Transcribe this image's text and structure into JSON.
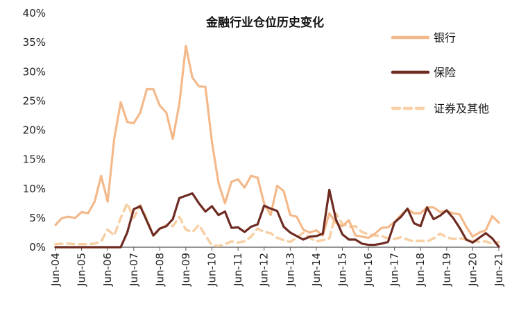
{
  "chart_data": {
    "type": "line",
    "title": "金融行业仓位历史变化",
    "xlabel": "",
    "ylabel": "",
    "ylim": [
      0,
      40
    ],
    "yticks": [
      "0%",
      "5%",
      "10%",
      "15%",
      "20%",
      "25%",
      "30%",
      "35%",
      "40%"
    ],
    "xticks": [
      "Jun-04",
      "Jun-05",
      "Jun-06",
      "Jun-07",
      "Jun-08",
      "Jun-09",
      "Jun-10",
      "Jun-11",
      "Jun-12",
      "Jun-13",
      "Jun-14",
      "Jun-15",
      "Jun-16",
      "Jun-17",
      "Jun-18",
      "Jun-19",
      "Jun-20",
      "Jun-21"
    ],
    "x_unit": "quarter index starting Jun-04 (4 per year)",
    "legend_position": "top-right",
    "grid": false,
    "series": [
      {
        "name": "银行",
        "color": "#f4b98b",
        "style": "solid",
        "values": [
          3.8,
          5.0,
          5.2,
          5.0,
          6.0,
          5.8,
          7.8,
          12.2,
          7.8,
          18.5,
          24.8,
          21.4,
          21.2,
          23.0,
          27.0,
          27.0,
          24.2,
          23.0,
          18.5,
          24.5,
          34.4,
          29.0,
          27.5,
          27.4,
          18.0,
          11.0,
          7.5,
          11.2,
          11.6,
          10.2,
          12.2,
          11.9,
          7.5,
          5.5,
          10.5,
          9.6,
          5.5,
          5.2,
          3.0,
          2.5,
          2.9,
          2.0,
          5.8,
          4.2,
          3.6,
          4.6,
          2.0,
          1.8,
          1.6,
          2.3,
          3.3,
          3.4,
          4.3,
          5.5,
          6.5,
          5.8,
          5.8,
          6.8,
          6.8,
          6.0,
          6.2,
          5.8,
          5.6,
          3.5,
          1.8,
          2.5,
          2.9,
          5.3,
          4.2
        ]
      },
      {
        "name": "保险",
        "color": "#6e2b22",
        "style": "solid",
        "values": [
          0,
          0,
          0,
          0,
          0,
          0,
          0,
          0,
          0,
          0,
          0,
          2.5,
          6.5,
          7.0,
          4.5,
          2.0,
          3.2,
          3.6,
          4.8,
          8.4,
          8.8,
          9.2,
          7.5,
          6.1,
          7.0,
          5.5,
          6.1,
          3.3,
          3.4,
          2.6,
          3.5,
          3.9,
          7.1,
          6.6,
          6.2,
          3.5,
          2.5,
          1.9,
          1.3,
          1.8,
          1.9,
          2.3,
          9.8,
          4.8,
          2.2,
          1.3,
          1.3,
          0.6,
          0.4,
          0.4,
          0.6,
          0.9,
          4.2,
          5.2,
          6.6,
          4.1,
          3.6,
          6.8,
          4.8,
          5.4,
          6.3,
          5.0,
          3.3,
          1.3,
          0.8,
          1.6,
          2.4,
          1.5,
          0.1
        ]
      },
      {
        "name": "证券及其他",
        "color": "#f7cfa3",
        "style": "dashed",
        "values": [
          0.5,
          0.6,
          0.6,
          0.5,
          0.5,
          0.5,
          0.6,
          1.0,
          3.0,
          2.0,
          5.0,
          7.5,
          5.0,
          7.2,
          4.8,
          2.0,
          3.0,
          3.8,
          3.6,
          5.2,
          3.0,
          2.6,
          3.8,
          2.0,
          0.3,
          0.2,
          0.5,
          1.0,
          0.8,
          1.0,
          1.8,
          3.2,
          2.6,
          2.4,
          1.6,
          1.2,
          0.9,
          1.6,
          2.5,
          1.6,
          1.0,
          1.2,
          1.5,
          5.8,
          4.0,
          3.5,
          3.6,
          2.6,
          2.2,
          2.0,
          1.9,
          1.5,
          1.4,
          1.7,
          1.3,
          1.0,
          1.1,
          1.0,
          1.5,
          2.3,
          1.7,
          1.4,
          1.5,
          1.3,
          1.1,
          0.9,
          1.0,
          0.6,
          0.9
        ]
      }
    ]
  }
}
